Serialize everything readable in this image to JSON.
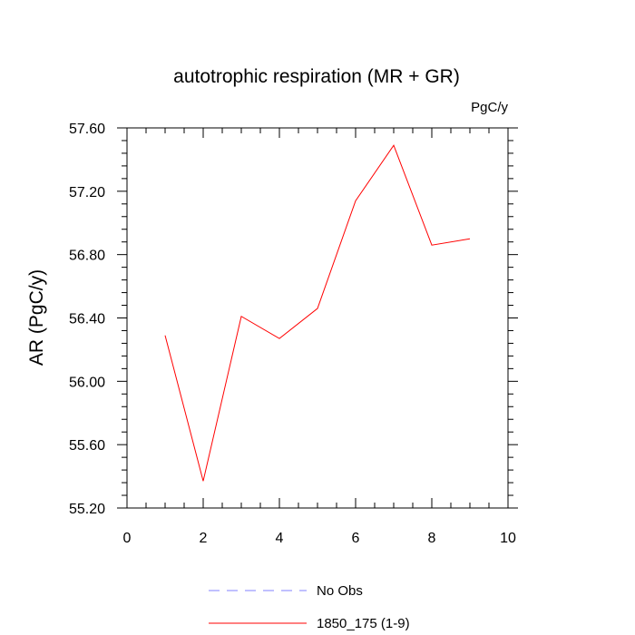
{
  "chart_data": {
    "type": "line",
    "title": "autotrophic respiration (MR + GR)",
    "units_label": "PgC/y",
    "ylabel": "AR  (PgC/y)",
    "xlabel": "",
    "xlim": [
      0,
      10
    ],
    "ylim": [
      55.2,
      57.6
    ],
    "x_ticks": [
      0,
      2,
      4,
      6,
      8,
      10
    ],
    "x_tick_labels": [
      "0",
      "2",
      "4",
      "6",
      "8",
      "10"
    ],
    "y_ticks": [
      55.2,
      55.6,
      56.0,
      56.4,
      56.8,
      57.2,
      57.6
    ],
    "y_tick_labels": [
      "55.20",
      "55.60",
      "56.00",
      "56.40",
      "56.80",
      "57.20",
      "57.60"
    ],
    "grid": false,
    "series": [
      {
        "name": "1850_175 (1-9)",
        "color": "#ff0000",
        "style": "solid",
        "x": [
          1,
          2,
          3,
          4,
          5,
          6,
          7,
          8,
          9
        ],
        "y": [
          56.29,
          55.37,
          56.41,
          56.27,
          56.46,
          57.14,
          57.49,
          56.86,
          56.9
        ]
      }
    ],
    "legend": [
      {
        "label": "No Obs",
        "color": "#8080ff",
        "style": "dashed"
      },
      {
        "label": "1850_175 (1-9)",
        "color": "#ff0000",
        "style": "solid"
      }
    ],
    "legend_placement": "bottom-center"
  }
}
